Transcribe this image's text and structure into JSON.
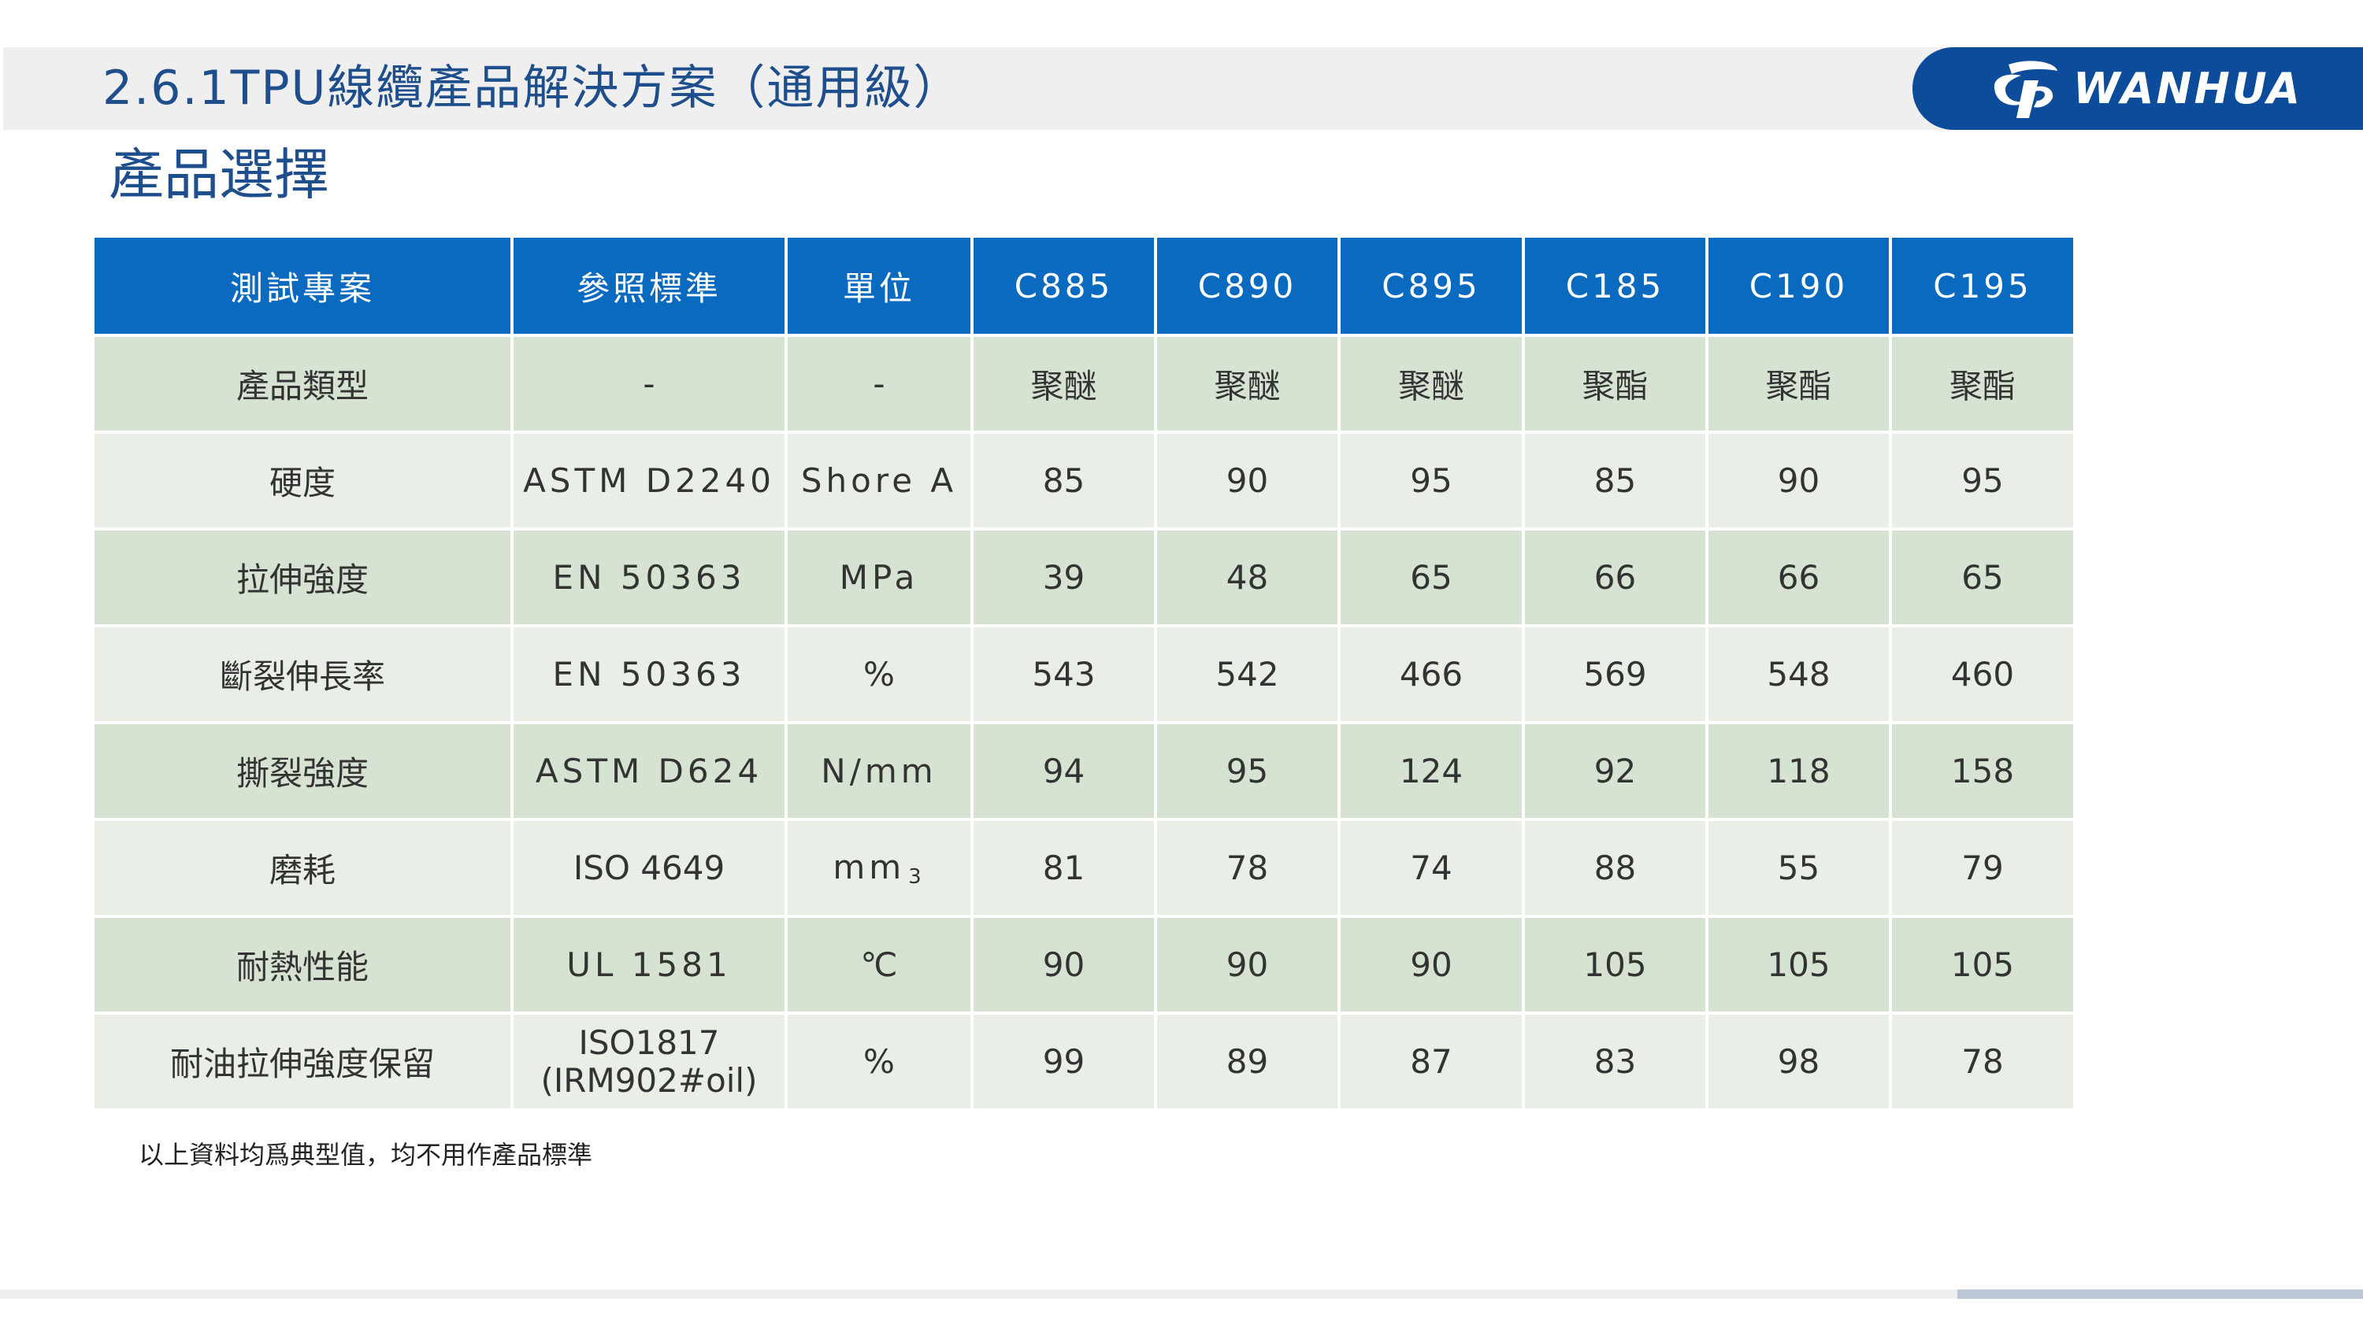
{
  "header": {
    "title": "2.6.1TPU線纜產品解決方案（通用級）",
    "subtitle": "產品選擇",
    "brand": "WANHUA"
  },
  "table": {
    "columns": [
      "測試專案",
      "參照標準",
      "單位",
      "C885",
      "C890",
      "C895",
      "C185",
      "C190",
      "C195"
    ],
    "rows": [
      {
        "item": "產品類型",
        "standard": "-",
        "unit": "-",
        "values": [
          "聚醚",
          "聚醚",
          "聚醚",
          "聚酯",
          "聚酯",
          "聚酯"
        ]
      },
      {
        "item": "硬度",
        "standard": "ASTM D2240",
        "unit": "Shore A",
        "values": [
          "85",
          "90",
          "95",
          "85",
          "90",
          "95"
        ]
      },
      {
        "item": "拉伸強度",
        "standard": "EN 50363",
        "unit": "MPa",
        "values": [
          "39",
          "48",
          "65",
          "66",
          "66",
          "65"
        ]
      },
      {
        "item": "斷裂伸長率",
        "standard": "EN 50363",
        "unit": "%",
        "values": [
          "543",
          "542",
          "466",
          "569",
          "548",
          "460"
        ]
      },
      {
        "item": "撕裂強度",
        "standard": "ASTM D624",
        "unit": "N/mm",
        "values": [
          "94",
          "95",
          "124",
          "92",
          "118",
          "158"
        ]
      },
      {
        "item": "磨耗",
        "standard": "ISO 4649",
        "unit": "mm",
        "unit_sup": "3",
        "values": [
          "81",
          "78",
          "74",
          "88",
          "55",
          "79"
        ]
      },
      {
        "item": "耐熱性能",
        "standard": "UL 1581",
        "unit": "℃",
        "values": [
          "90",
          "90",
          "90",
          "105",
          "105",
          "105"
        ]
      },
      {
        "item": "耐油拉伸強度保留",
        "standard_line1": "ISO1817",
        "standard_line2": "(IRM902#oil)",
        "unit": "%",
        "values": [
          "99",
          "89",
          "87",
          "83",
          "98",
          "78"
        ]
      }
    ]
  },
  "footnote": "以上資料均爲典型值，均不用作產品標準",
  "colors": {
    "header_fill": "#0a6ac0",
    "row_dark": "#d6e3d2",
    "row_light": "#e9efe7",
    "title_text": "#1f4e8c",
    "brand_badge": "#0d4c9b"
  }
}
